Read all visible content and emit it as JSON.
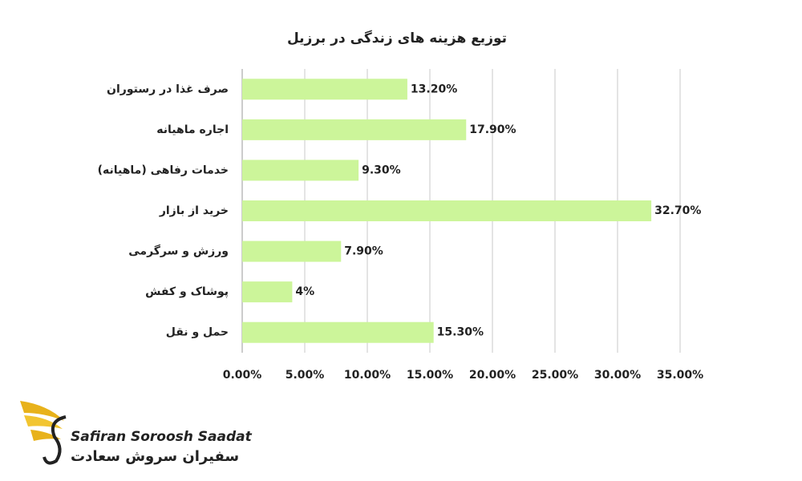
{
  "chart_data": {
    "type": "bar",
    "orientation": "horizontal",
    "title": "توزیع هزینه های زندگی در برزیل",
    "categories": [
      "صرف غذا در رستوران",
      "اجاره ماهیانه",
      "خدمات رفاهی (ماهیانه)",
      "خرید از بازار",
      "ورزش و سرگرمی",
      "پوشاک و کفش",
      "حمل و نقل"
    ],
    "values": [
      13.2,
      17.9,
      9.3,
      32.7,
      7.9,
      4,
      15.3
    ],
    "value_labels": [
      "13.20%",
      "17.90%",
      "9.30%",
      "32.70%",
      "7.90%",
      "4%",
      "15.30%"
    ],
    "color": "#ccf59a",
    "xlim": [
      0,
      35
    ],
    "xticks": [
      {
        "value": 0,
        "label": "0.00%"
      },
      {
        "value": 5,
        "label": "5.00%"
      },
      {
        "value": 10,
        "label": "10.00%"
      },
      {
        "value": 15,
        "label": "15.00%"
      },
      {
        "value": 20,
        "label": "20.00%"
      },
      {
        "value": 25,
        "label": "25.00%"
      },
      {
        "value": 30,
        "label": "30.00%"
      },
      {
        "value": 35,
        "label": "35.00%"
      }
    ],
    "grid": true
  },
  "logo": {
    "name": "Safiran Soroosh Saadat",
    "name_fa": "سفیران سروش سعادت"
  }
}
